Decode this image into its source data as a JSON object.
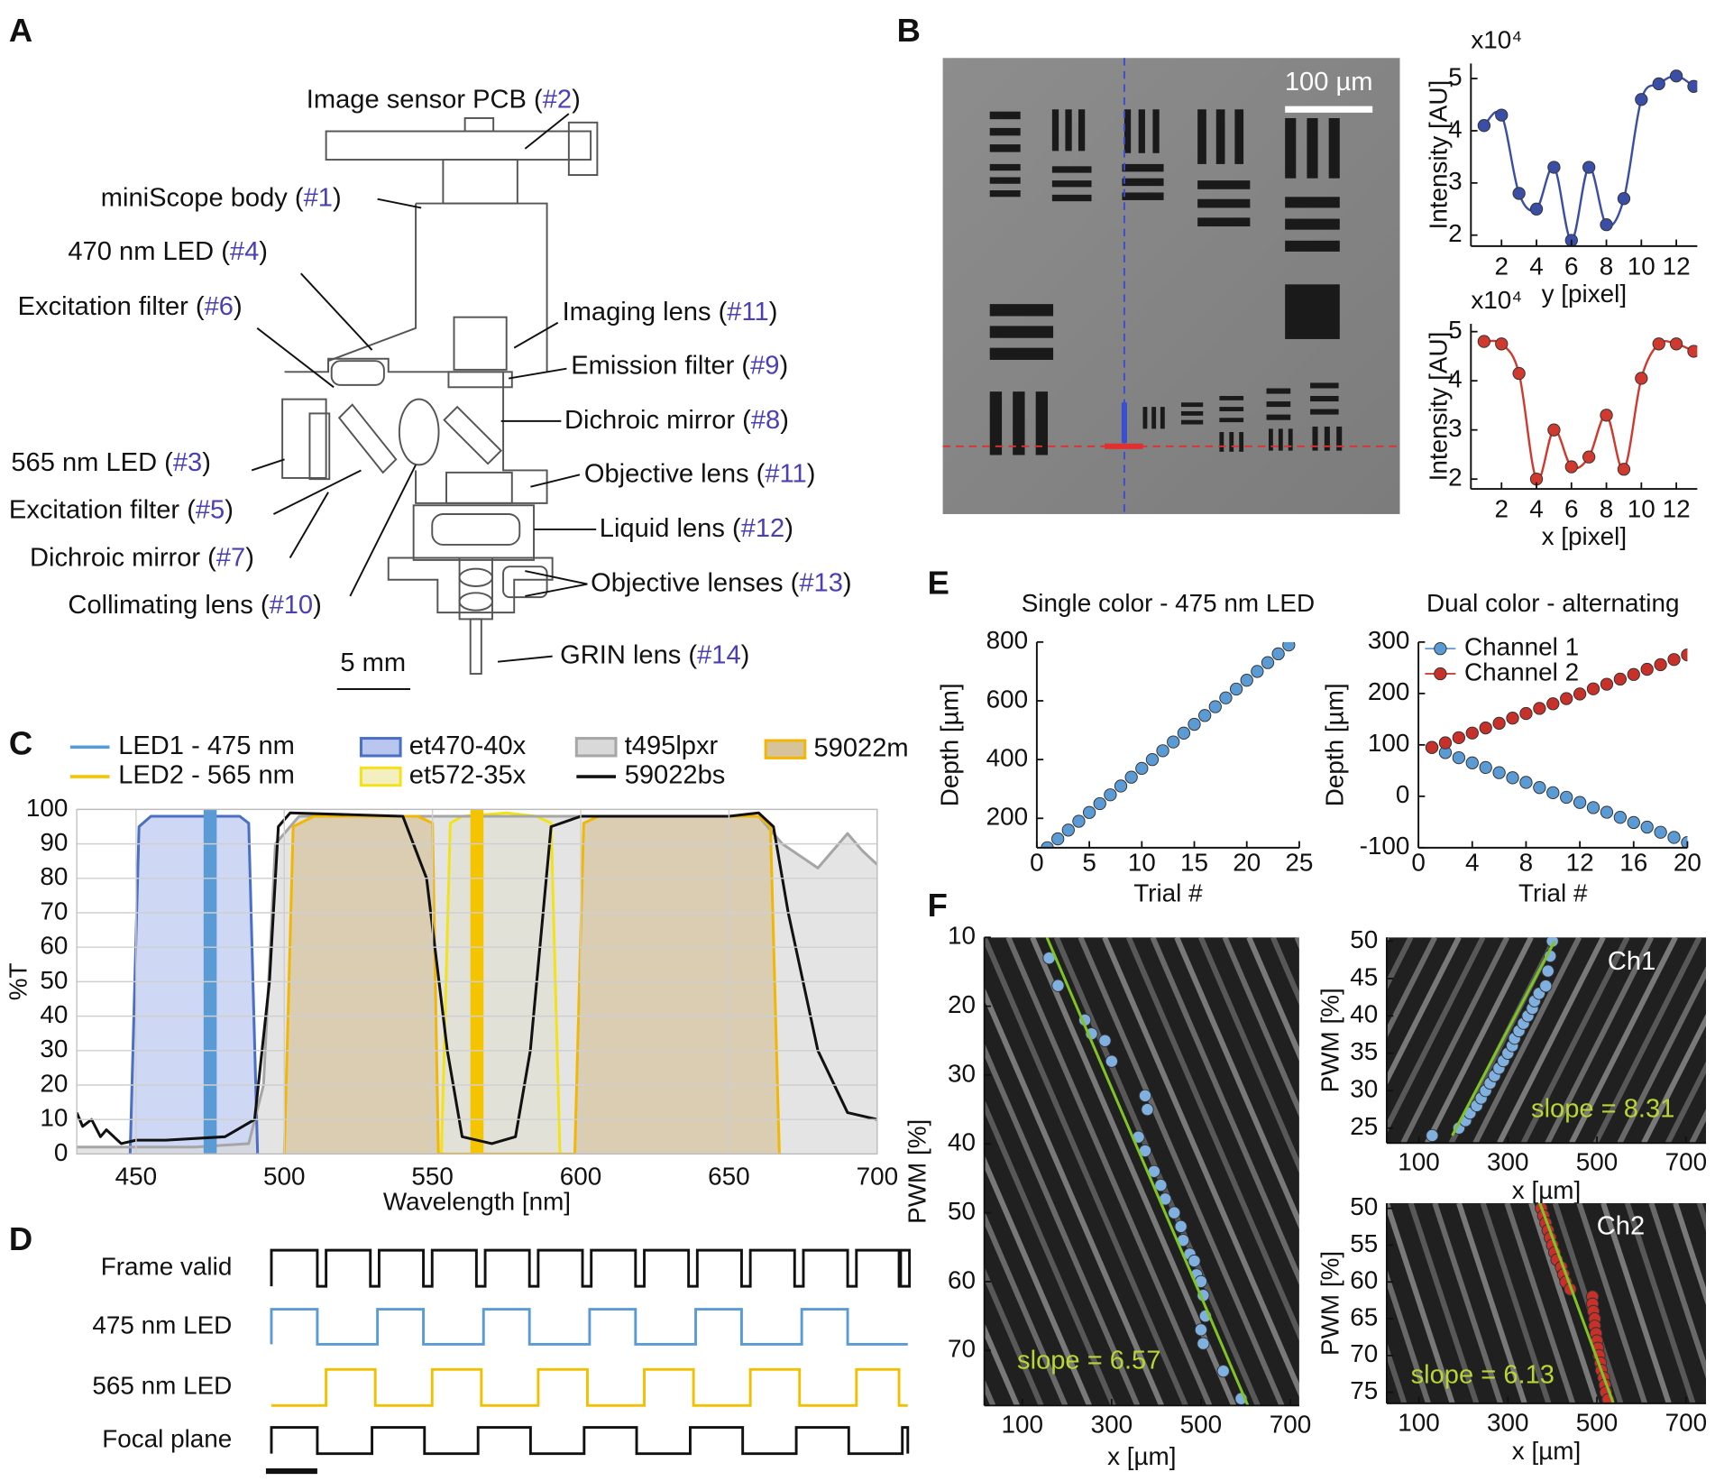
{
  "panel_labels": [
    "A",
    "B",
    "C",
    "D",
    "E",
    "F"
  ],
  "diagram": {
    "labels": [
      {
        "text": "Image sensor PCB (",
        "ref": "#2",
        "end": ")"
      },
      {
        "text": "miniScope body (",
        "ref": "#1",
        "end": ")"
      },
      {
        "text": "470 nm LED (",
        "ref": "#4",
        "end": ")"
      },
      {
        "text": "Excitation filter (",
        "ref": "#6",
        "end": ")"
      },
      {
        "text": "Imaging lens (",
        "ref": "#11",
        "end": ")"
      },
      {
        "text": "Emission filter (",
        "ref": "#9",
        "end": ")"
      },
      {
        "text": "Dichroic mirror (",
        "ref": "#8",
        "end": ")"
      },
      {
        "text": "565 nm LED (",
        "ref": "#3",
        "end": ")"
      },
      {
        "text": "Objective lens (",
        "ref": "#11",
        "end": ")"
      },
      {
        "text": "Excitation filter (",
        "ref": "#5",
        "end": ")"
      },
      {
        "text": "Liquid lens (",
        "ref": "#12",
        "end": ")"
      },
      {
        "text": "Dichroic mirror (",
        "ref": "#7",
        "end": ")"
      },
      {
        "text": "Objective lenses (",
        "ref": "#13",
        "end": ")"
      },
      {
        "text": "Collimating lens (",
        "ref": "#10",
        "end": ")"
      },
      {
        "text": "GRIN lens (",
        "ref": "#14",
        "end": ")"
      }
    ],
    "scale_bar": "5 mm"
  },
  "image_b": {
    "scale_bar": "100 µm"
  },
  "timing": {
    "rows": [
      "Frame valid",
      "475 nm LED",
      "565 nm LED",
      "Focal plane"
    ]
  },
  "chart_data": [
    {
      "type": "line",
      "markers": true,
      "y_unit": "x10⁴",
      "ylabel": "Intensity [AU]",
      "xlabel": "y [pixel]",
      "xlim": [
        0.25,
        13.2
      ],
      "xticks": [
        2,
        4,
        6,
        8,
        10,
        12
      ],
      "ylim": [
        1.79,
        5.29
      ],
      "yticks": [
        2,
        3,
        4,
        5
      ],
      "series": [
        {
          "color": "#3b4ea6",
          "x": [
            1,
            2,
            3,
            4,
            5,
            6,
            7,
            8,
            9,
            10,
            11,
            12,
            13
          ],
          "values": [
            4.1,
            4.3,
            2.8,
            2.5,
            3.3,
            1.9,
            3.3,
            2.2,
            2.7,
            4.6,
            4.9,
            5.05,
            4.85
          ]
        }
      ]
    },
    {
      "type": "line",
      "markers": true,
      "y_unit": "x10⁴",
      "ylabel": "Intensity [AU]",
      "xlabel": "x [pixel]",
      "xlim": [
        0.25,
        13.2
      ],
      "xticks": [
        2,
        4,
        6,
        8,
        10,
        12
      ],
      "ylim": [
        1.8,
        5.16
      ],
      "yticks": [
        2,
        3,
        4,
        5
      ],
      "series": [
        {
          "color": "#d0392e",
          "x": [
            1,
            2,
            3,
            4,
            5,
            6,
            7,
            8,
            9,
            10,
            11,
            12,
            13
          ],
          "values": [
            4.8,
            4.75,
            4.15,
            2.0,
            3.0,
            2.25,
            2.45,
            3.3,
            2.2,
            4.05,
            4.75,
            4.75,
            4.6
          ]
        }
      ]
    },
    {
      "type": "area",
      "grid": true,
      "ylabel": "%T",
      "xlabel": "Wavelength [nm]",
      "xlim": [
        430,
        700
      ],
      "xticks": [
        450,
        500,
        550,
        600,
        650,
        700
      ],
      "ylim": [
        0,
        100
      ],
      "yticks": [
        0,
        10,
        20,
        30,
        40,
        50,
        60,
        70,
        80,
        90,
        100
      ],
      "series": [
        {
          "name": "LED1 - 475 nm",
          "color": "#5b9bd5",
          "width": 12,
          "x": [
            475,
            475
          ],
          "values": [
            0,
            100
          ]
        },
        {
          "name": "LED2 - 565 nm",
          "color": "#f5c400",
          "width": 12,
          "x": [
            565,
            565
          ],
          "values": [
            0,
            100
          ]
        },
        {
          "name": "et470-40x",
          "color": "#4a6fc4",
          "fill": "#b9c6f0",
          "width": 2.5,
          "x": [
            448,
            451,
            455,
            470,
            485,
            488,
            491
          ],
          "values": [
            0,
            95,
            98,
            98,
            98,
            96,
            0
          ]
        },
        {
          "name": "et572-35x",
          "color": "#f2e21a",
          "fill": "#f3efc0",
          "width": 2.5,
          "x": [
            553,
            556,
            560,
            575,
            585,
            590,
            593
          ],
          "values": [
            0,
            96,
            98,
            99,
            98,
            96,
            0
          ]
        },
        {
          "name": "t495lpxr",
          "color": "#a6a6a6",
          "fill": "#d9d9d9",
          "width": 2.5,
          "x": [
            430,
            470,
            488,
            493,
            497,
            505,
            550,
            600,
            660,
            668,
            680,
            685,
            690,
            695,
            700
          ],
          "values": [
            2,
            2,
            3,
            20,
            90,
            98,
            98,
            98,
            98,
            90,
            83,
            88,
            93,
            88,
            84
          ]
        },
        {
          "name": "59022bs",
          "color": "#111111",
          "width": 2.5,
          "x": [
            430,
            432,
            435,
            438,
            440,
            445,
            450,
            460,
            480,
            490,
            495,
            498,
            502,
            540,
            548,
            555,
            560,
            570,
            578,
            583,
            590,
            600,
            650,
            660,
            665,
            670,
            680,
            690,
            700
          ],
          "values": [
            12,
            8,
            10,
            5,
            7,
            3,
            4,
            4,
            5,
            10,
            50,
            95,
            99,
            98,
            80,
            30,
            5,
            3,
            5,
            30,
            95,
            98,
            98,
            99,
            95,
            70,
            30,
            12,
            10
          ]
        },
        {
          "name": "59022m",
          "color": "#f2b705",
          "fill": "#d6c39c",
          "width": 2.5,
          "x": [
            500,
            503,
            510,
            545,
            550,
            552,
            598,
            601,
            606,
            660,
            664,
            667
          ],
          "values": [
            0,
            95,
            98,
            98,
            96,
            0,
            0,
            96,
            98,
            98,
            95,
            0
          ]
        }
      ]
    },
    {
      "type": "scatter",
      "title": "Single color - 475 nm LED",
      "ylabel": "Depth [µm]",
      "xlabel": "Trial #",
      "xlim": [
        0,
        25
      ],
      "xticks": [
        0,
        5,
        10,
        15,
        20,
        25
      ],
      "ylim": [
        100,
        800
      ],
      "yticks": [
        200,
        400,
        600,
        800
      ],
      "series": [
        {
          "color": "#5b9bd5",
          "x": [
            1,
            2,
            3,
            4,
            5,
            6,
            7,
            8,
            9,
            10,
            11,
            12,
            13,
            14,
            15,
            16,
            17,
            18,
            19,
            20,
            21,
            22,
            23,
            24
          ],
          "values": [
            100,
            130,
            160,
            190,
            220,
            250,
            280,
            310,
            340,
            370,
            400,
            430,
            460,
            490,
            520,
            550,
            580,
            610,
            640,
            670,
            700,
            730,
            760,
            790
          ]
        }
      ]
    },
    {
      "type": "scatter",
      "title": "Dual color - alternating",
      "ylabel": "Depth [µm]",
      "xlabel": "Trial #",
      "xlim": [
        0,
        20
      ],
      "xticks": [
        0,
        4,
        8,
        12,
        16,
        20
      ],
      "ylim": [
        -100,
        300
      ],
      "yticks": [
        -100,
        0,
        100,
        200,
        300
      ],
      "legend": "upper-left",
      "series": [
        {
          "name": "Channel 1",
          "color": "#5b9bd5",
          "x": [
            1,
            2,
            3,
            4,
            5,
            6,
            7,
            8,
            9,
            10,
            11,
            12,
            13,
            14,
            15,
            16,
            17,
            18,
            19,
            20
          ],
          "values": [
            95,
            85,
            75,
            65,
            56,
            46,
            36,
            27,
            17,
            7,
            -2,
            -12,
            -22,
            -31,
            -41,
            -51,
            -60,
            -70,
            -80,
            -90
          ]
        },
        {
          "name": "Channel 2",
          "color": "#c8302a",
          "x": [
            1,
            2,
            3,
            4,
            5,
            6,
            7,
            8,
            9,
            10,
            11,
            12,
            13,
            14,
            15,
            16,
            17,
            18,
            19,
            20
          ],
          "values": [
            95,
            104,
            114,
            123,
            133,
            142,
            152,
            161,
            171,
            180,
            190,
            199,
            209,
            218,
            228,
            237,
            247,
            256,
            266,
            275
          ]
        }
      ]
    },
    {
      "type": "scatter",
      "y_inverted": true,
      "ylabel": "PWM [%]",
      "xlabel": "x [µm]",
      "annotation": "slope = 6.57",
      "xlim": [
        15,
        720
      ],
      "xticks": [
        100,
        300,
        500,
        700
      ],
      "ylim": [
        10,
        78
      ],
      "yticks": [
        10,
        20,
        30,
        40,
        50,
        60,
        70
      ],
      "series": [
        {
          "color": "#7fb0e0",
          "x": [
            160,
            180,
            240,
            255,
            285,
            300,
            375,
            380,
            360,
            375,
            395,
            410,
            420,
            440,
            455,
            460,
            475,
            485,
            490,
            500,
            505,
            510,
            500,
            505,
            550,
            590
          ],
          "values": [
            13,
            17,
            22,
            24,
            25,
            28,
            33,
            35,
            39,
            41,
            44,
            46,
            48,
            50,
            52,
            54,
            56,
            57,
            59,
            60,
            62,
            65,
            67,
            69,
            73,
            77
          ]
        },
        {
          "color": "#7fc424",
          "line": true,
          "x": [
            155,
            605
          ],
          "values": [
            10,
            78
          ]
        }
      ]
    },
    {
      "type": "scatter",
      "ylabel": "PWM [%]",
      "xlabel": "x [µm]",
      "annotation": "slope = 8.31",
      "tag": "Ch1",
      "xlim": [
        28,
        745
      ],
      "xticks": [
        100,
        300,
        500,
        700
      ],
      "ylim": [
        23,
        50.5
      ],
      "yticks": [
        25,
        30,
        35,
        40,
        45,
        50
      ],
      "series": [
        {
          "color": "#7fb0e0",
          "x": [
            130,
            190,
            205,
            215,
            230,
            240,
            250,
            260,
            270,
            280,
            290,
            300,
            310,
            315,
            325,
            335,
            345,
            355,
            360,
            370,
            385,
            390,
            395,
            400
          ],
          "values": [
            24,
            25,
            26,
            27,
            28,
            29,
            30,
            31,
            32,
            33,
            34,
            35,
            36,
            37,
            38,
            39,
            40,
            41,
            42,
            43,
            44,
            46,
            48,
            50
          ]
        },
        {
          "color": "#7fc424",
          "line": true,
          "x": [
            175,
            405
          ],
          "values": [
            24,
            50
          ]
        }
      ]
    },
    {
      "type": "scatter",
      "y_inverted": true,
      "ylabel": "PWM [%]",
      "xlabel": "x [µm]",
      "annotation": "slope = 6.13",
      "tag": "Ch2",
      "xlim": [
        28,
        745
      ],
      "xticks": [
        100,
        300,
        500,
        700
      ],
      "ylim": [
        49.3,
        76.5
      ],
      "yticks": [
        50,
        55,
        60,
        65,
        70,
        75
      ],
      "series": [
        {
          "color": "#c8302a",
          "x": [
            375,
            380,
            385,
            390,
            395,
            400,
            405,
            410,
            420,
            425,
            430,
            440,
            490,
            490,
            492,
            495,
            495,
            498,
            500,
            502,
            505,
            508,
            510,
            515,
            518,
            520,
            525
          ],
          "values": [
            50,
            51,
            52,
            53,
            54,
            55,
            56,
            57,
            58,
            59,
            60,
            61,
            62,
            63,
            64,
            65,
            66,
            67,
            68,
            69,
            70,
            71,
            72,
            73,
            74,
            75,
            76
          ]
        },
        {
          "color": "#7fc424",
          "line": true,
          "x": [
            370,
            540
          ],
          "values": [
            49,
            77
          ]
        }
      ]
    }
  ]
}
